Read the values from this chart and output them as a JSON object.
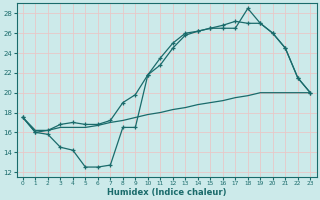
{
  "xlabel": "Humidex (Indice chaleur)",
  "bg_color": "#cceaea",
  "grid_color": "#e8c8c8",
  "line_color": "#1a6b6b",
  "xlim": [
    -0.5,
    23.5
  ],
  "ylim": [
    11.5,
    29.0
  ],
  "xticks": [
    0,
    1,
    2,
    3,
    4,
    5,
    6,
    7,
    8,
    9,
    10,
    11,
    12,
    13,
    14,
    15,
    16,
    17,
    18,
    19,
    20,
    21,
    22,
    23
  ],
  "yticks": [
    12,
    14,
    16,
    18,
    20,
    22,
    24,
    26,
    28
  ],
  "line1_x": [
    0,
    1,
    2,
    3,
    4,
    5,
    6,
    7,
    8,
    9,
    10,
    11,
    12,
    13,
    14,
    15,
    16,
    17,
    18,
    19,
    20,
    21,
    22,
    23
  ],
  "line1_y": [
    17.5,
    16.0,
    15.8,
    14.5,
    14.2,
    12.5,
    12.5,
    12.7,
    16.5,
    16.5,
    21.8,
    23.5,
    25.0,
    26.0,
    26.2,
    26.5,
    26.5,
    26.5,
    28.5,
    27.0,
    26.0,
    24.5,
    21.5,
    20.0
  ],
  "line2_x": [
    0,
    1,
    2,
    3,
    4,
    5,
    6,
    7,
    8,
    9,
    10,
    11,
    12,
    13,
    14,
    15,
    16,
    17,
    18,
    19,
    20,
    21,
    22,
    23
  ],
  "line2_y": [
    17.5,
    16.0,
    16.2,
    16.8,
    17.0,
    16.8,
    16.8,
    17.2,
    19.0,
    19.8,
    21.8,
    22.8,
    24.5,
    25.8,
    26.2,
    26.5,
    26.8,
    27.2,
    27.0,
    27.0,
    26.0,
    24.5,
    21.5,
    20.0
  ],
  "line3_x": [
    0,
    1,
    2,
    3,
    4,
    5,
    6,
    7,
    8,
    9,
    10,
    11,
    12,
    13,
    14,
    15,
    16,
    17,
    18,
    19,
    20,
    21,
    22,
    23
  ],
  "line3_y": [
    17.5,
    16.2,
    16.2,
    16.5,
    16.5,
    16.5,
    16.7,
    17.0,
    17.2,
    17.5,
    17.8,
    18.0,
    18.3,
    18.5,
    18.8,
    19.0,
    19.2,
    19.5,
    19.7,
    20.0,
    20.0,
    20.0,
    20.0,
    20.0
  ]
}
